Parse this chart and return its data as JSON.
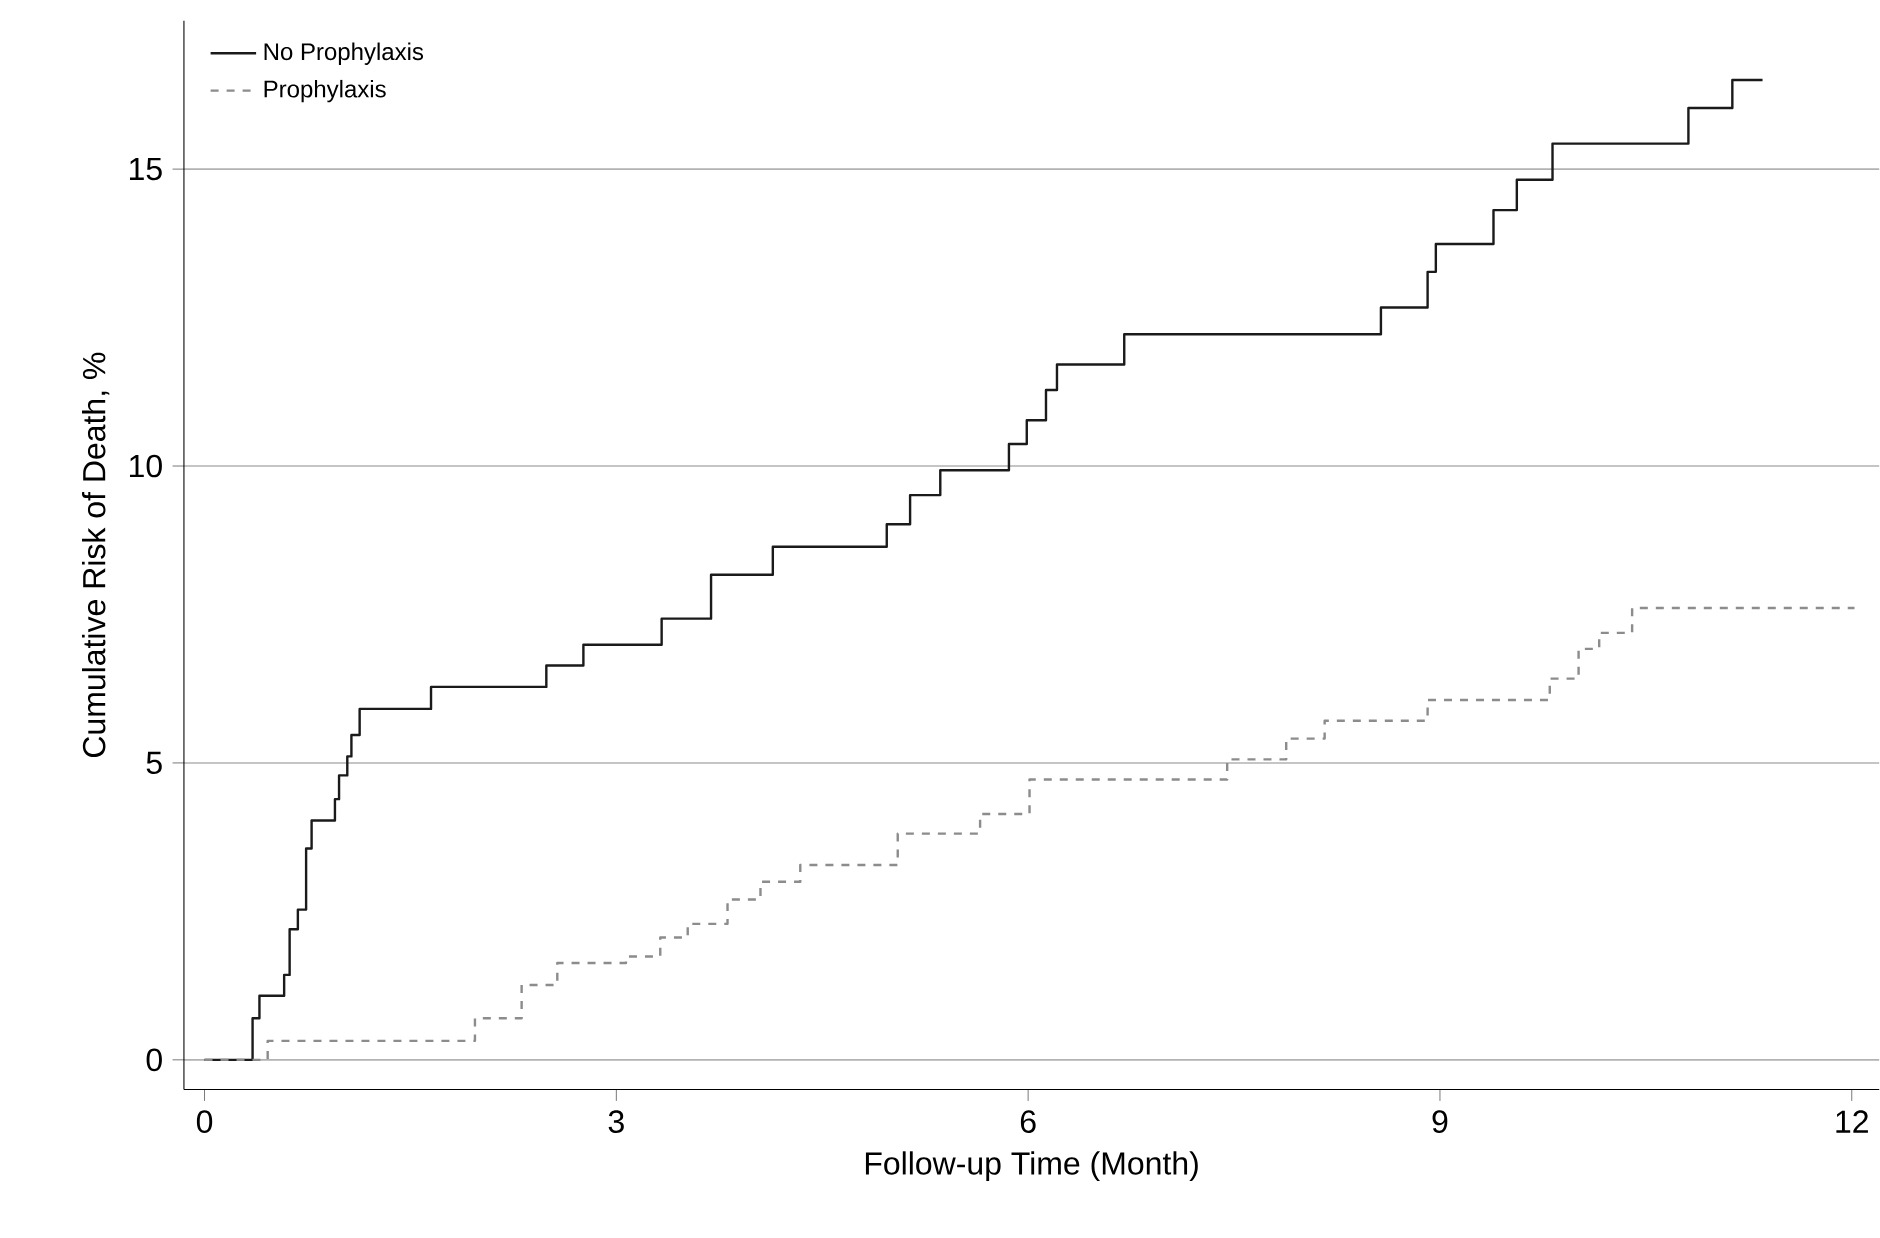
{
  "chart_data": {
    "type": "step",
    "xlabel": "Follow-up Time (Month)",
    "ylabel": "Cumulative Risk of Death, %",
    "xlim": [
      -0.15,
      12.2
    ],
    "ylim": [
      -0.5,
      17.5
    ],
    "xticks": [
      0,
      3,
      6,
      9,
      12
    ],
    "yticks": [
      0,
      5,
      10,
      15
    ],
    "grid": "y",
    "legend": "top left",
    "marker": "none",
    "series": [
      {
        "name": "No Prophylaxis",
        "color": "#1a1a1a",
        "line_style": "solid",
        "x": [
          0,
          0.35,
          0.4,
          0.58,
          0.62,
          0.68,
          0.74,
          0.78,
          0.95,
          0.98,
          1.04,
          1.07,
          1.13,
          1.65,
          2.49,
          2.76,
          3.33,
          3.69,
          4.14,
          4.97,
          5.14,
          5.36,
          5.86,
          5.99,
          6.13,
          6.21,
          6.7,
          8.57,
          8.91,
          8.97,
          9.39,
          9.56,
          9.82,
          10.81,
          11.13,
          11.35
        ],
        "values": [
          0,
          0.7,
          1.08,
          1.43,
          2.2,
          2.53,
          3.56,
          4.03,
          4.39,
          4.79,
          5.11,
          5.47,
          5.91,
          6.28,
          6.64,
          6.99,
          7.43,
          8.17,
          8.64,
          9.02,
          9.51,
          9.93,
          10.37,
          10.77,
          11.28,
          11.71,
          12.22,
          12.67,
          13.27,
          13.74,
          14.31,
          14.82,
          15.43,
          16.03,
          16.5,
          16.5
        ]
      },
      {
        "name": "Prophylaxis",
        "color": "#8c8c8c",
        "line_style": "dashed",
        "x": [
          0,
          0.46,
          1.97,
          2.31,
          2.57,
          3.07,
          3.32,
          3.52,
          3.81,
          4.05,
          4.34,
          5.05,
          5.65,
          6.01,
          7.45,
          7.88,
          8.16,
          8.91,
          9.8,
          10.01,
          10.16,
          10.4,
          12.02
        ],
        "values": [
          0,
          0.32,
          0.7,
          1.26,
          1.63,
          1.74,
          2.06,
          2.29,
          2.7,
          3.0,
          3.28,
          3.81,
          4.14,
          4.72,
          5.06,
          5.41,
          5.71,
          6.06,
          6.42,
          6.92,
          7.19,
          7.61,
          7.61
        ]
      }
    ]
  }
}
